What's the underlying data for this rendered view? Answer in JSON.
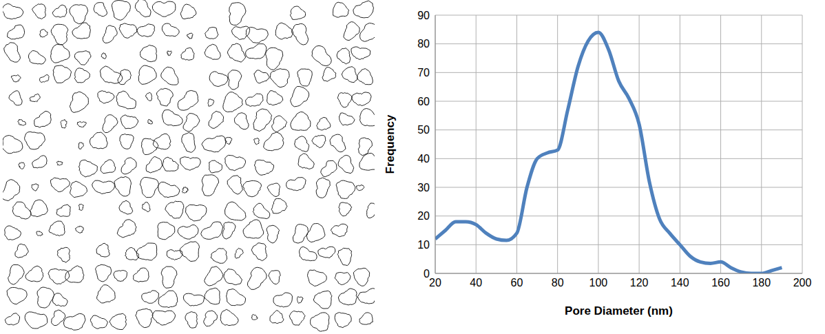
{
  "chart_data": {
    "type": "line",
    "xlabel": "Pore Diameter (nm)",
    "ylabel": "Frequency",
    "x": [
      20,
      25,
      30,
      35,
      40,
      45,
      50,
      55,
      60,
      65,
      70,
      75,
      80,
      85,
      90,
      95,
      100,
      105,
      110,
      115,
      120,
      125,
      130,
      135,
      140,
      145,
      150,
      155,
      160,
      165,
      170,
      175,
      180,
      185,
      190
    ],
    "values": [
      12,
      15,
      18,
      18,
      17,
      14,
      12,
      11.5,
      14,
      30,
      40,
      42,
      43,
      57,
      72,
      81,
      84,
      78,
      67,
      61,
      52,
      32,
      19,
      14,
      10,
      6,
      4,
      3.5,
      4,
      2,
      0.5,
      0,
      0,
      1,
      2
    ],
    "color": "#4f81bd",
    "xlim": [
      20,
      200
    ],
    "ylim": [
      0,
      90
    ],
    "xticks": [
      20,
      40,
      60,
      80,
      100,
      120,
      140,
      160,
      180,
      200
    ],
    "yticks": [
      0,
      10,
      20,
      30,
      40,
      50,
      60,
      70,
      80,
      90
    ],
    "grid": true,
    "line_style": "solid",
    "marker": "none"
  }
}
